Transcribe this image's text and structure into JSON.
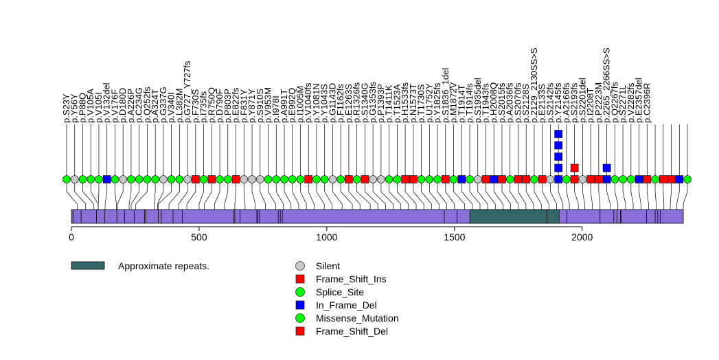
{
  "chart_data": {
    "type": "lollipop",
    "protein_length": 2396,
    "xlim": [
      0,
      2396
    ],
    "xticks": [
      "0",
      "500",
      "1000",
      "1500",
      "2000"
    ],
    "tick_values": [
      0,
      500,
      1000,
      1500,
      2000
    ],
    "domains": [
      {
        "name": "Approximate repeats.",
        "start": 1560,
        "end": 1910,
        "color": "#336666"
      }
    ],
    "motifs": [
      6,
      38,
      98,
      130,
      178,
      208,
      246,
      286,
      292,
      340,
      352,
      398,
      434,
      636,
      640,
      660,
      726,
      730,
      736,
      810,
      818,
      826,
      1460,
      1510,
      1862,
      1940,
      2070,
      2124,
      2136,
      2150,
      2152,
      2252,
      2286,
      2296,
      2306
    ],
    "mutation_classes": [
      {
        "name": "Silent",
        "shape": "circle",
        "color": "#c8c8c8"
      },
      {
        "name": "Frame_Shift_Ins",
        "shape": "square",
        "color": "#ff0000"
      },
      {
        "name": "Splice_Site",
        "shape": "circle",
        "color": "#00ff00"
      },
      {
        "name": "In_Frame_Del",
        "shape": "square",
        "color": "#0000ff"
      },
      {
        "name": "Missense_Mutation",
        "shape": "circle",
        "color": "#00ff00"
      },
      {
        "name": "Frame_Shift_Del",
        "shape": "square",
        "color": "#ff0000"
      }
    ],
    "mutations": [
      {
        "label": "p.S23Y",
        "pos": 23,
        "type": "Missense_Mutation",
        "count": 1
      },
      {
        "label": "p.Y56Y",
        "pos": 56,
        "type": "Silent",
        "count": 1
      },
      {
        "label": "p.P88Q",
        "pos": 88,
        "type": "Missense_Mutation",
        "count": 1
      },
      {
        "label": "p.V105A",
        "pos": 105,
        "type": "Missense_Mutation",
        "count": 1
      },
      {
        "label": "p.V105I",
        "pos": 105,
        "type": "Missense_Mutation",
        "count": 1
      },
      {
        "label": "p.V132del",
        "pos": 132,
        "type": "In_Frame_Del",
        "count": 1
      },
      {
        "label": "p.V176F",
        "pos": 176,
        "type": "Missense_Mutation",
        "count": 1
      },
      {
        "label": "p.D180D",
        "pos": 180,
        "type": "Silent",
        "count": 1
      },
      {
        "label": "p.A226P",
        "pos": 226,
        "type": "Missense_Mutation",
        "count": 1
      },
      {
        "label": "p.C234G",
        "pos": 234,
        "type": "Missense_Mutation",
        "count": 1
      },
      {
        "label": "p.Q252fs",
        "pos": 252,
        "type": "Missense_Mutation",
        "count": 1
      },
      {
        "label": "p.A324T",
        "pos": 324,
        "type": "Missense_Mutation",
        "count": 1
      },
      {
        "label": "p.G337G",
        "pos": 337,
        "type": "Silent",
        "count": 1
      },
      {
        "label": "p.V340I",
        "pos": 340,
        "type": "Missense_Mutation",
        "count": 1
      },
      {
        "label": "p.L382M",
        "pos": 382,
        "type": "Missense_Mutation",
        "count": 1
      },
      {
        "label": "p.G727_Y727fs",
        "pos": 420,
        "type": "Silent",
        "count": 1
      },
      {
        "label": "p.F730S",
        "pos": 452,
        "type": "Frame_Shift_Del",
        "count": 1
      },
      {
        "label": "p.I735fs",
        "pos": 500,
        "type": "Missense_Mutation",
        "count": 1
      },
      {
        "label": "p.R750Q",
        "pos": 520,
        "type": "Frame_Shift_Del",
        "count": 1
      },
      {
        "label": "p.D790F",
        "pos": 560,
        "type": "Missense_Mutation",
        "count": 1
      },
      {
        "label": "p.P803P",
        "pos": 600,
        "type": "Missense_Mutation",
        "count": 1
      },
      {
        "label": "p.E822fs",
        "pos": 640,
        "type": "Frame_Shift_Del",
        "count": 1
      },
      {
        "label": "p.F831Y",
        "pos": 680,
        "type": "Silent",
        "count": 1
      },
      {
        "label": "p.Y871Y",
        "pos": 720,
        "type": "Silent",
        "count": 1
      },
      {
        "label": "p.S910S",
        "pos": 760,
        "type": "Silent",
        "count": 1
      },
      {
        "label": "p.V953M",
        "pos": 800,
        "type": "Missense_Mutation",
        "count": 1
      },
      {
        "label": "p.I978I",
        "pos": 830,
        "type": "Missense_Mutation",
        "count": 1
      },
      {
        "label": "p.A991T",
        "pos": 860,
        "type": "Missense_Mutation",
        "count": 1
      },
      {
        "label": "p.E992Q",
        "pos": 890,
        "type": "Missense_Mutation",
        "count": 1
      },
      {
        "label": "p.I1005M",
        "pos": 920,
        "type": "Missense_Mutation",
        "count": 1
      },
      {
        "label": "p.V1040fs",
        "pos": 950,
        "type": "Frame_Shift_Del",
        "count": 1
      },
      {
        "label": "p.Y1081N",
        "pos": 990,
        "type": "Missense_Mutation",
        "count": 1
      },
      {
        "label": "p.Y1043S",
        "pos": 1020,
        "type": "Missense_Mutation",
        "count": 1
      },
      {
        "label": "p.G1143D",
        "pos": 1060,
        "type": "Silent",
        "count": 1
      },
      {
        "label": "p.F1162fs",
        "pos": 1100,
        "type": "Missense_Mutation",
        "count": 1
      },
      {
        "label": "p.E1263S",
        "pos": 1130,
        "type": "Frame_Shift_Del",
        "count": 1
      },
      {
        "label": "p.R1326fs",
        "pos": 1170,
        "type": "Missense_Mutation",
        "count": 1
      },
      {
        "label": "p.S1340G",
        "pos": 1200,
        "type": "Frame_Shift_Del",
        "count": 1
      },
      {
        "label": "p.G1353fs",
        "pos": 1230,
        "type": "Silent",
        "count": 1
      },
      {
        "label": "p.P1393P",
        "pos": 1260,
        "type": "Silent",
        "count": 1
      },
      {
        "label": "p.T1411K",
        "pos": 1290,
        "type": "Missense_Mutation",
        "count": 1
      },
      {
        "label": "p.T1523A",
        "pos": 1320,
        "type": "Missense_Mutation",
        "count": 1
      },
      {
        "label": "p.H1533fs",
        "pos": 1350,
        "type": "Frame_Shift_Del",
        "count": 1
      },
      {
        "label": "p.N1573T",
        "pos": 1380,
        "type": "Frame_Shift_Del",
        "count": 1
      },
      {
        "label": "p.T1730S",
        "pos": 1410,
        "type": "Missense_Mutation",
        "count": 1
      },
      {
        "label": "p.U1752Y",
        "pos": 1440,
        "type": "Missense_Mutation",
        "count": 1
      },
      {
        "label": "p.Y1825fs",
        "pos": 1470,
        "type": "Missense_Mutation",
        "count": 1
      },
      {
        "label": "p.S1836_1del",
        "pos": 1500,
        "type": "Frame_Shift_Del",
        "count": 1
      },
      {
        "label": "p.M1872V",
        "pos": 1540,
        "type": "Missense_Mutation",
        "count": 1
      },
      {
        "label": "p.T1914T",
        "pos": 1570,
        "type": "In_Frame_Del",
        "count": 1
      },
      {
        "label": "p.T1914fs",
        "pos": 1600,
        "type": "Missense_Mutation",
        "count": 1
      },
      {
        "label": "p.S1935del",
        "pos": 1630,
        "type": "Silent",
        "count": 1
      },
      {
        "label": "p.T1943fs",
        "pos": 1660,
        "type": "Frame_Shift_Del",
        "count": 1
      },
      {
        "label": "p.H2008Q",
        "pos": 1690,
        "type": "In_Frame_Del",
        "count": 1
      },
      {
        "label": "p.S2015fs",
        "pos": 1720,
        "type": "Frame_Shift_Del",
        "count": 1
      },
      {
        "label": "p.A2036fs",
        "pos": 1750,
        "type": "Missense_Mutation",
        "count": 1
      },
      {
        "label": "p.S2070fs",
        "pos": 1780,
        "type": "Frame_Shift_Del",
        "count": 1
      },
      {
        "label": "p.S2128S",
        "pos": 1810,
        "type": "Frame_Shift_Del",
        "count": 1
      },
      {
        "label": "p.2129_2130SS>S",
        "pos": 1840,
        "type": "Missense_Mutation",
        "count": 1
      },
      {
        "label": "p.E2133S",
        "pos": 1870,
        "type": "Frame_Shift_Del",
        "count": 1
      },
      {
        "label": "p.S2142fs",
        "pos": 1900,
        "type": "Silent",
        "count": 1
      },
      {
        "label": "p.Y2145fs",
        "pos": 1925,
        "type": "In_Frame_Del",
        "count": 5
      },
      {
        "label": "p.A2166fs",
        "pos": 1950,
        "type": "Missense_Mutation",
        "count": 1
      },
      {
        "label": "p.S2193fs",
        "pos": 1985,
        "type": "Frame_Shift_Del",
        "count": 2
      },
      {
        "label": "p.S2201del",
        "pos": 2010,
        "type": "Silent",
        "count": 1
      },
      {
        "label": "p.I2208T",
        "pos": 2040,
        "type": "Frame_Shift_Del",
        "count": 1
      },
      {
        "label": "p.P2223M",
        "pos": 2070,
        "type": "Frame_Shift_Del",
        "count": 1
      },
      {
        "label": "p.2265_2266SS>S",
        "pos": 2110,
        "type": "In_Frame_Del",
        "count": 2
      },
      {
        "label": "p.Q2267fs",
        "pos": 2140,
        "type": "Missense_Mutation",
        "count": 1
      },
      {
        "label": "p.S2271L",
        "pos": 2170,
        "type": "Missense_Mutation",
        "count": 1
      },
      {
        "label": "p.V2282fs",
        "pos": 2200,
        "type": "Missense_Mutation",
        "count": 1
      },
      {
        "label": "p.E2357del",
        "pos": 2230,
        "type": "In_Frame_Del",
        "count": 1
      },
      {
        "label": "p.C2396R",
        "pos": 2260,
        "type": "Frame_Shift_Del",
        "count": 1
      },
      {
        "label": "",
        "pos": 2290,
        "type": "Missense_Mutation",
        "count": 1
      },
      {
        "label": "",
        "pos": 2320,
        "type": "Frame_Shift_Del",
        "count": 1
      },
      {
        "label": "",
        "pos": 2345,
        "type": "Frame_Shift_Del",
        "count": 1
      },
      {
        "label": "",
        "pos": 2370,
        "type": "In_Frame_Del",
        "count": 1
      },
      {
        "label": "",
        "pos": 2396,
        "type": "Missense_Mutation",
        "count": 1
      }
    ]
  }
}
